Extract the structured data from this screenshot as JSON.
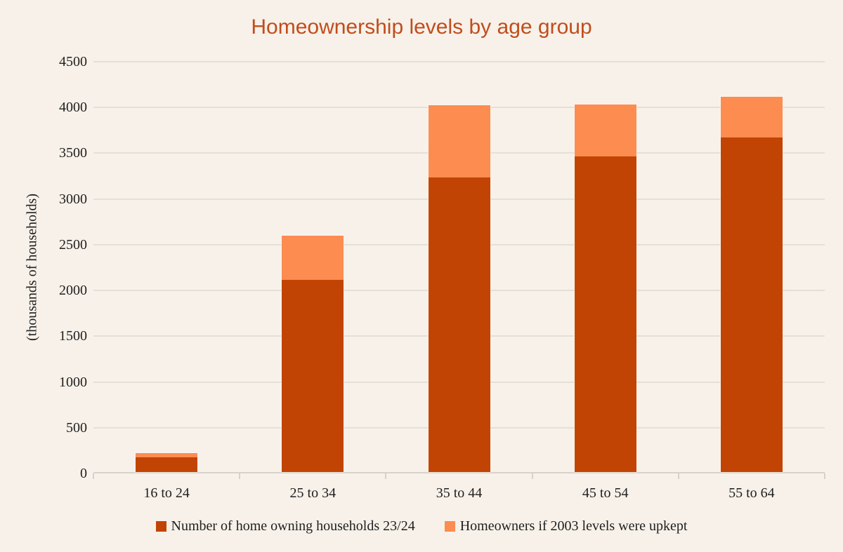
{
  "page": {
    "background": "#f7f1e9"
  },
  "title": "Homeownership levels by age group",
  "chart_data": {
    "type": "bar",
    "stacked": true,
    "title": "Homeownership levels by age group",
    "xlabel": "",
    "ylabel": "(thousands of households)",
    "categories": [
      "16 to 24",
      "25 to 34",
      "35 to 44",
      "45 to 54",
      "55 to 64"
    ],
    "series": [
      {
        "name": "Number of home owning households 23/24",
        "color": "#c24404",
        "values": [
          160,
          2100,
          3220,
          3450,
          3660
        ]
      },
      {
        "name": "Homeowners if 2003 levels were upkept",
        "color": "#fd8c51",
        "values": [
          50,
          480,
          790,
          570,
          445
        ]
      }
    ],
    "stack_totals": [
      210,
      2580,
      4010,
      4020,
      4105
    ],
    "ylim": [
      0,
      4500
    ],
    "yticks": [
      0,
      500,
      1000,
      1500,
      2000,
      2500,
      3000,
      3500,
      4000,
      4500
    ],
    "grid": true,
    "legend_position": "bottom"
  },
  "colors": {
    "background": "#f7f1e9",
    "title_text": "#c14d1d",
    "series_dark": "#c24404",
    "series_light": "#fd8c51",
    "gridline": "#e4dfd8",
    "axis_line": "#d6d1ca",
    "label_text": "#1f1f1f"
  }
}
